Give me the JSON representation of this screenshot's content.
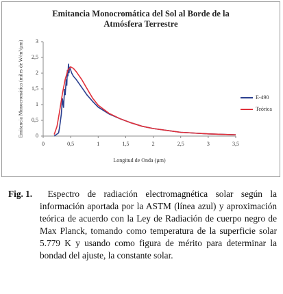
{
  "chart_data": {
    "type": "line",
    "title": "Emitancia Monocromática del Sol al Borde de la Atmósfera Terrestre",
    "xlabel": "Longitud de Onda (µm)",
    "ylabel": "Emitancia Monocromática (miles de W/m²/µm)",
    "xlim": [
      0,
      3.5
    ],
    "ylim": [
      0,
      3
    ],
    "xticks": [
      0,
      {
        "value": 0.5,
        "label": "0,5"
      },
      1,
      {
        "value": 1.5,
        "label": "1,5"
      },
      2,
      {
        "value": 2.5,
        "label": "2,5"
      },
      3,
      {
        "value": 3.5,
        "label": "3,5"
      }
    ],
    "yticks": [
      0,
      {
        "value": 0.5,
        "label": "0,5"
      },
      1,
      {
        "value": 1.5,
        "label": "1,5"
      },
      2,
      {
        "value": 2.5,
        "label": "2,5"
      },
      3
    ],
    "grid": false,
    "legend": "right",
    "series": [
      {
        "name": "E-490",
        "color": "#2a3f8f",
        "x": [
          0.2,
          0.28,
          0.3,
          0.33,
          0.35,
          0.37,
          0.39,
          0.4,
          0.42,
          0.43,
          0.44,
          0.45,
          0.46,
          0.47,
          0.48,
          0.5,
          0.52,
          0.55,
          0.6,
          0.7,
          0.8,
          0.9,
          1.0,
          1.2,
          1.4,
          1.6,
          1.8,
          2.0,
          2.5,
          3.0,
          3.5
        ],
        "values": [
          0,
          0.1,
          0.3,
          0.7,
          1.2,
          0.9,
          1.5,
          1.3,
          1.8,
          1.6,
          2.1,
          1.9,
          2.3,
          2.0,
          2.2,
          2.1,
          2.0,
          1.9,
          1.8,
          1.55,
          1.3,
          1.1,
          0.92,
          0.7,
          0.55,
          0.42,
          0.31,
          0.24,
          0.12,
          0.07,
          0.04
        ]
      },
      {
        "name": "Teórica",
        "color": "#e0303a",
        "x": [
          0.2,
          0.25,
          0.3,
          0.35,
          0.4,
          0.45,
          0.5,
          0.55,
          0.6,
          0.7,
          0.8,
          0.9,
          1.0,
          1.2,
          1.4,
          1.6,
          1.8,
          2.0,
          2.5,
          3.0,
          3.5
        ],
        "values": [
          0.05,
          0.3,
          0.8,
          1.35,
          1.8,
          2.1,
          2.2,
          2.15,
          2.05,
          1.8,
          1.5,
          1.2,
          0.98,
          0.72,
          0.55,
          0.42,
          0.31,
          0.24,
          0.12,
          0.07,
          0.04
        ]
      }
    ]
  },
  "caption": {
    "label": "Fig. 1.",
    "text": "Espectro de radiación electromagnética solar según la información aportada por la ASTM (línea azul) y aproximación teórica de acuerdo con la Ley de Radiación de cuerpo negro de Max Planck, tomando como temperatura de la superficie solar 5.779 K y usando como figura de mérito para determinar la bondad del ajuste, la constante solar."
  }
}
